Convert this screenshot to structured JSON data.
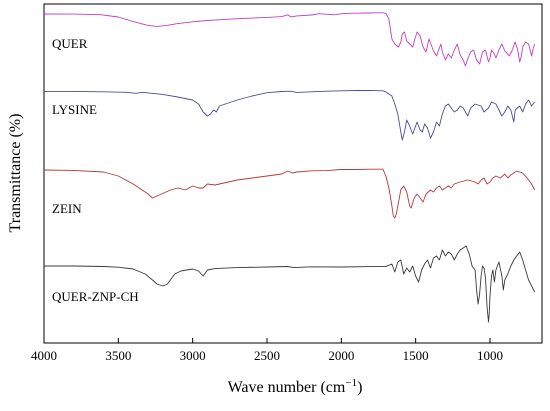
{
  "chart_data": {
    "type": "line",
    "xlabel": "Wave number (cm",
    "xlabel_sup": "−1",
    "xlabel_close": ")",
    "ylabel": "Transmittance (%)",
    "xlim": [
      4000,
      650
    ],
    "x_reversed": true,
    "x_ticks": [
      "4000",
      "3500",
      "3000",
      "2500",
      "2000",
      "1500",
      "1000"
    ],
    "y_axis_values_shown": false,
    "grid": false,
    "series": [
      {
        "name": "QUER",
        "color": "#c040c0",
        "baseline": 0.5,
        "points": [
          [
            4000,
            0.0
          ],
          [
            3800,
            0.1
          ],
          [
            3620,
            0.7
          ],
          [
            3500,
            3.0
          ],
          [
            3400,
            7.6
          ],
          [
            3300,
            11.4
          ],
          [
            3240,
            12.4
          ],
          [
            3180,
            11.6
          ],
          [
            3100,
            9.6
          ],
          [
            3000,
            7.8
          ],
          [
            2900,
            6.5
          ],
          [
            2800,
            5.6
          ],
          [
            2700,
            4.7
          ],
          [
            2500,
            3.4
          ],
          [
            2400,
            2.6
          ],
          [
            2360,
            0.8
          ],
          [
            2340,
            2.9
          ],
          [
            2300,
            1.9
          ],
          [
            2200,
            1.0
          ],
          [
            2150,
            -0.3
          ],
          [
            2050,
            0.8
          ],
          [
            1980,
            -0.6
          ],
          [
            1900,
            -0.8
          ],
          [
            1820,
            -1.0
          ],
          [
            1760,
            -1.2
          ],
          [
            1720,
            -1.2
          ],
          [
            1700,
            -0.6
          ],
          [
            1680,
            5.0
          ],
          [
            1660,
            25.0
          ],
          [
            1640,
            30.0
          ],
          [
            1615,
            33.0
          ],
          [
            1600,
            28.0
          ],
          [
            1590,
            20.0
          ],
          [
            1575,
            18.0
          ],
          [
            1560,
            27.0
          ],
          [
            1520,
            33.0
          ],
          [
            1505,
            25.0
          ],
          [
            1490,
            18.0
          ],
          [
            1470,
            22.0
          ],
          [
            1450,
            33.0
          ],
          [
            1430,
            38.0
          ],
          [
            1410,
            25.0
          ],
          [
            1380,
            37.0
          ],
          [
            1360,
            42.0
          ],
          [
            1330,
            30.0
          ],
          [
            1320,
            38.0
          ],
          [
            1300,
            46.0
          ],
          [
            1280,
            40.0
          ],
          [
            1260,
            44.0
          ],
          [
            1240,
            36.0
          ],
          [
            1220,
            30.0
          ],
          [
            1200,
            41.0
          ],
          [
            1180,
            46.0
          ],
          [
            1165,
            52.0
          ],
          [
            1150,
            45.0
          ],
          [
            1130,
            38.0
          ],
          [
            1110,
            36.0
          ],
          [
            1090,
            46.0
          ],
          [
            1070,
            50.0
          ],
          [
            1050,
            38.0
          ],
          [
            1030,
            36.0
          ],
          [
            1010,
            48.0
          ],
          [
            1000,
            44.0
          ],
          [
            990,
            36.0
          ],
          [
            970,
            40.0
          ],
          [
            960,
            44.0
          ],
          [
            940,
            36.0
          ],
          [
            920,
            30.0
          ],
          [
            900,
            37.0
          ],
          [
            870,
            42.0
          ],
          [
            850,
            36.0
          ],
          [
            830,
            28.0
          ],
          [
            815,
            35.0
          ],
          [
            800,
            48.0
          ],
          [
            790,
            43.0
          ],
          [
            780,
            33.0
          ],
          [
            760,
            28.0
          ],
          [
            740,
            30.0
          ],
          [
            720,
            42.0
          ],
          [
            710,
            35.0
          ],
          [
            700,
            30.0
          ]
        ]
      },
      {
        "name": "LYSINE",
        "color": "#4a4e9a",
        "baseline": 0.45,
        "points": [
          [
            4000,
            -0.6
          ],
          [
            3800,
            -0.6
          ],
          [
            3600,
            -0.2
          ],
          [
            3450,
            0.3
          ],
          [
            3380,
            1.3
          ],
          [
            3340,
            0.3
          ],
          [
            3200,
            2.4
          ],
          [
            3100,
            5.0
          ],
          [
            3000,
            8.0
          ],
          [
            2960,
            12.0
          ],
          [
            2930,
            20.0
          ],
          [
            2900,
            24.0
          ],
          [
            2880,
            22.0
          ],
          [
            2860,
            18.0
          ],
          [
            2840,
            20.0
          ],
          [
            2820,
            14.0
          ],
          [
            2700,
            8.0
          ],
          [
            2600,
            4.0
          ],
          [
            2500,
            0.7
          ],
          [
            2400,
            -0.5
          ],
          [
            2340,
            -0.8
          ],
          [
            2300,
            0.4
          ],
          [
            2200,
            -0.2
          ],
          [
            2100,
            -0.8
          ],
          [
            2000,
            -1.2
          ],
          [
            1900,
            -1.5
          ],
          [
            1800,
            -1.6
          ],
          [
            1720,
            -1.2
          ],
          [
            1700,
            0.0
          ],
          [
            1680,
            2.0
          ],
          [
            1660,
            4.0
          ],
          [
            1640,
            12.0
          ],
          [
            1620,
            22.0
          ],
          [
            1600,
            40.0
          ],
          [
            1590,
            48.0
          ],
          [
            1575,
            40.0
          ],
          [
            1560,
            28.0
          ],
          [
            1540,
            34.0
          ],
          [
            1520,
            42.0
          ],
          [
            1505,
            36.0
          ],
          [
            1490,
            30.0
          ],
          [
            1470,
            38.0
          ],
          [
            1455,
            40.0
          ],
          [
            1440,
            32.0
          ],
          [
            1420,
            36.0
          ],
          [
            1400,
            46.0
          ],
          [
            1380,
            40.0
          ],
          [
            1360,
            30.0
          ],
          [
            1340,
            34.0
          ],
          [
            1320,
            22.0
          ],
          [
            1300,
            14.0
          ],
          [
            1280,
            12.0
          ],
          [
            1260,
            16.0
          ],
          [
            1240,
            20.0
          ],
          [
            1220,
            18.0
          ],
          [
            1200,
            14.0
          ],
          [
            1180,
            16.0
          ],
          [
            1150,
            24.0
          ],
          [
            1130,
            16.0
          ],
          [
            1100,
            12.0
          ],
          [
            1060,
            14.0
          ],
          [
            1040,
            20.0
          ],
          [
            1010,
            16.0
          ],
          [
            990,
            10.0
          ],
          [
            960,
            12.0
          ],
          [
            940,
            18.0
          ],
          [
            920,
            24.0
          ],
          [
            900,
            20.0
          ],
          [
            880,
            14.0
          ],
          [
            860,
            18.0
          ],
          [
            840,
            30.0
          ],
          [
            830,
            18.0
          ],
          [
            800,
            14.0
          ],
          [
            780,
            20.0
          ],
          [
            760,
            12.0
          ],
          [
            740,
            8.0
          ],
          [
            720,
            14.0
          ],
          [
            700,
            10.0
          ]
        ]
      },
      {
        "name": "ZEIN",
        "color": "#b23a3a",
        "baseline": 0.45,
        "points": [
          [
            4000,
            0.0
          ],
          [
            3800,
            0.4
          ],
          [
            3600,
            2.0
          ],
          [
            3500,
            6.0
          ],
          [
            3400,
            14.0
          ],
          [
            3300,
            24.0
          ],
          [
            3270,
            28.0
          ],
          [
            3240,
            26.0
          ],
          [
            3150,
            20.0
          ],
          [
            3100,
            18.0
          ],
          [
            3050,
            20.0
          ],
          [
            3000,
            16.0
          ],
          [
            2960,
            18.0
          ],
          [
            2930,
            18.0
          ],
          [
            2900,
            14.0
          ],
          [
            2850,
            15.0
          ],
          [
            2700,
            10.0
          ],
          [
            2500,
            6.0
          ],
          [
            2400,
            4.0
          ],
          [
            2360,
            1.0
          ],
          [
            2330,
            3.0
          ],
          [
            2300,
            2.0
          ],
          [
            2200,
            0.8
          ],
          [
            2100,
            0.6
          ],
          [
            2000,
            -0.5
          ],
          [
            1900,
            -0.5
          ],
          [
            1800,
            -0.8
          ],
          [
            1720,
            -0.8
          ],
          [
            1700,
            6.0
          ],
          [
            1680,
            18.0
          ],
          [
            1660,
            36.0
          ],
          [
            1650,
            46.0
          ],
          [
            1640,
            48.0
          ],
          [
            1630,
            44.0
          ],
          [
            1600,
            20.0
          ],
          [
            1580,
            16.0
          ],
          [
            1560,
            22.0
          ],
          [
            1540,
            36.0
          ],
          [
            1530,
            38.0
          ],
          [
            1510,
            28.0
          ],
          [
            1490,
            24.0
          ],
          [
            1470,
            28.0
          ],
          [
            1450,
            32.0
          ],
          [
            1430,
            24.0
          ],
          [
            1400,
            20.0
          ],
          [
            1380,
            22.0
          ],
          [
            1360,
            18.0
          ],
          [
            1340,
            16.0
          ],
          [
            1320,
            20.0
          ],
          [
            1300,
            18.0
          ],
          [
            1280,
            16.0
          ],
          [
            1260,
            18.0
          ],
          [
            1240,
            14.0
          ],
          [
            1200,
            12.0
          ],
          [
            1150,
            10.0
          ],
          [
            1100,
            12.0
          ],
          [
            1080,
            14.0
          ],
          [
            1060,
            10.0
          ],
          [
            1040,
            8.0
          ],
          [
            1020,
            14.0
          ],
          [
            1000,
            12.0
          ],
          [
            980,
            8.0
          ],
          [
            960,
            6.0
          ],
          [
            930,
            8.0
          ],
          [
            900,
            4.0
          ],
          [
            880,
            8.0
          ],
          [
            860,
            5.0
          ],
          [
            840,
            3.0
          ],
          [
            820,
            1.0
          ],
          [
            780,
            3.0
          ],
          [
            750,
            8.0
          ],
          [
            720,
            14.0
          ],
          [
            700,
            20.0
          ]
        ]
      },
      {
        "name": "QUER-ZNP-CH",
        "color": "#3a3a3a",
        "baseline": 0.45,
        "points": [
          [
            4000,
            0.0
          ],
          [
            3800,
            0.0
          ],
          [
            3600,
            0.5
          ],
          [
            3500,
            1.2
          ],
          [
            3400,
            3.0
          ],
          [
            3320,
            8.0
          ],
          [
            3270,
            14.0
          ],
          [
            3240,
            18.0
          ],
          [
            3200,
            20.0
          ],
          [
            3170,
            18.0
          ],
          [
            3120,
            8.0
          ],
          [
            3080,
            5.0
          ],
          [
            3000,
            3.0
          ],
          [
            2960,
            5.0
          ],
          [
            2930,
            10.0
          ],
          [
            2900,
            4.0
          ],
          [
            2850,
            2.6
          ],
          [
            2700,
            1.6
          ],
          [
            2500,
            1.0
          ],
          [
            2360,
            0.5
          ],
          [
            2320,
            1.6
          ],
          [
            2200,
            0.8
          ],
          [
            2000,
            1.0
          ],
          [
            1800,
            0.6
          ],
          [
            1700,
            0.4
          ],
          [
            1660,
            -2.0
          ],
          [
            1640,
            6.0
          ],
          [
            1620,
            -4.0
          ],
          [
            1600,
            -6.0
          ],
          [
            1580,
            8.0
          ],
          [
            1560,
            2.0
          ],
          [
            1540,
            6.0
          ],
          [
            1520,
            0.0
          ],
          [
            1500,
            10.0
          ],
          [
            1480,
            16.0
          ],
          [
            1460,
            4.0
          ],
          [
            1440,
            -2.0
          ],
          [
            1420,
            -6.0
          ],
          [
            1400,
            2.0
          ],
          [
            1380,
            -8.0
          ],
          [
            1360,
            -10.0
          ],
          [
            1340,
            -6.0
          ],
          [
            1320,
            -16.0
          ],
          [
            1300,
            -10.0
          ],
          [
            1280,
            -14.0
          ],
          [
            1260,
            -12.0
          ],
          [
            1240,
            -6.0
          ],
          [
            1220,
            -12.0
          ],
          [
            1200,
            -16.0
          ],
          [
            1180,
            -18.0
          ],
          [
            1160,
            -20.0
          ],
          [
            1140,
            -12.0
          ],
          [
            1120,
            0.0
          ],
          [
            1100,
            4.0
          ],
          [
            1090,
            24.0
          ],
          [
            1080,
            38.0
          ],
          [
            1070,
            28.0
          ],
          [
            1060,
            10.0
          ],
          [
            1050,
            0.0
          ],
          [
            1040,
            2.0
          ],
          [
            1030,
            12.0
          ],
          [
            1020,
            40.0
          ],
          [
            1010,
            56.0
          ],
          [
            1005,
            48.0
          ],
          [
            1000,
            30.0
          ],
          [
            990,
            10.0
          ],
          [
            980,
            4.0
          ],
          [
            970,
            16.0
          ],
          [
            960,
            4.0
          ],
          [
            940,
            -4.0
          ],
          [
            920,
            10.0
          ],
          [
            910,
            24.0
          ],
          [
            900,
            14.0
          ],
          [
            880,
            8.0
          ],
          [
            860,
            0.0
          ],
          [
            840,
            -6.0
          ],
          [
            820,
            -10.0
          ],
          [
            800,
            -14.0
          ],
          [
            780,
            -6.0
          ],
          [
            760,
            4.0
          ],
          [
            740,
            14.0
          ],
          [
            720,
            20.0
          ],
          [
            700,
            26.0
          ]
        ]
      }
    ]
  }
}
